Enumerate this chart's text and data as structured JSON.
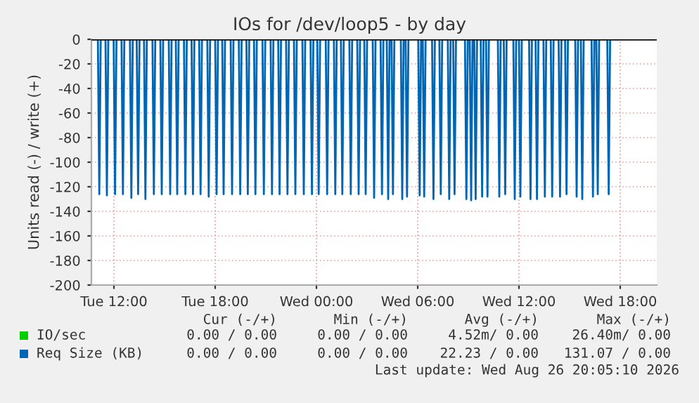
{
  "chart_data": {
    "type": "line",
    "title": "IOs for /dev/loop5 - by day",
    "ylabel": "Units read (-) / write (+)",
    "xlim": [
      "2026-08-25T10:40",
      "2026-08-26T20:10"
    ],
    "xticks": [
      {
        "value": "2026-08-25T12:00",
        "label": "Tue 12:00"
      },
      {
        "value": "2026-08-25T18:00",
        "label": "Tue 18:00"
      },
      {
        "value": "2026-08-26T00:00",
        "label": "Wed 00:00"
      },
      {
        "value": "2026-08-26T06:00",
        "label": "Wed 06:00"
      },
      {
        "value": "2026-08-26T12:00",
        "label": "Wed 12:00"
      },
      {
        "value": "2026-08-26T18:00",
        "label": "Wed 18:00"
      }
    ],
    "ylim": [
      -200,
      0
    ],
    "yticks": [
      0,
      -20,
      -40,
      -60,
      -80,
      -100,
      -120,
      -140,
      -160,
      -180,
      -200
    ],
    "grid": true,
    "legend": "bottom",
    "line_style": "solid",
    "marker": "none",
    "ref_lines": [
      {
        "axis": "y",
        "value": 0,
        "color": "#000000"
      }
    ],
    "series": [
      {
        "name": "IO/sec",
        "color": "#00cc00"
      },
      {
        "name": "Req Size (KB)",
        "color": "#0066b3",
        "x": [
          "2026-08-25T10:42",
          "2026-08-25T11:03",
          "2026-08-25T11:08",
          "2026-08-25T11:13",
          "2026-08-25T11:30",
          "2026-08-25T11:35",
          "2026-08-25T11:40",
          "2026-08-25T11:59",
          "2026-08-25T12:04",
          "2026-08-25T12:09",
          "2026-08-25T12:27",
          "2026-08-25T12:32",
          "2026-08-25T12:37",
          "2026-08-25T12:57",
          "2026-08-25T13:02",
          "2026-08-25T13:07",
          "2026-08-25T13:21",
          "2026-08-25T13:26",
          "2026-08-25T13:31",
          "2026-08-25T13:47",
          "2026-08-25T13:52",
          "2026-08-25T13:57",
          "2026-08-25T14:17",
          "2026-08-25T14:22",
          "2026-08-25T14:27",
          "2026-08-25T14:45",
          "2026-08-25T14:50",
          "2026-08-25T14:55",
          "2026-08-25T15:15",
          "2026-08-25T15:20",
          "2026-08-25T15:25",
          "2026-08-25T15:40",
          "2026-08-25T15:45",
          "2026-08-25T15:50",
          "2026-08-25T16:09",
          "2026-08-25T16:14",
          "2026-08-25T16:19",
          "2026-08-25T16:36",
          "2026-08-25T16:41",
          "2026-08-25T16:46",
          "2026-08-25T17:03",
          "2026-08-25T17:08",
          "2026-08-25T17:13",
          "2026-08-25T17:32",
          "2026-08-25T17:37",
          "2026-08-25T17:42",
          "2026-08-25T18:00",
          "2026-08-25T18:05",
          "2026-08-25T18:10",
          "2026-08-25T18:25",
          "2026-08-25T18:30",
          "2026-08-25T18:35",
          "2026-08-25T18:55",
          "2026-08-25T19:00",
          "2026-08-25T19:05",
          "2026-08-25T19:24",
          "2026-08-25T19:29",
          "2026-08-25T19:34",
          "2026-08-25T19:51",
          "2026-08-25T19:56",
          "2026-08-25T20:01",
          "2026-08-25T20:18",
          "2026-08-25T20:23",
          "2026-08-25T20:28",
          "2026-08-25T20:48",
          "2026-08-25T20:53",
          "2026-08-25T20:58",
          "2026-08-25T21:17",
          "2026-08-25T21:22",
          "2026-08-25T21:27",
          "2026-08-25T21:44",
          "2026-08-25T21:49",
          "2026-08-25T21:54",
          "2026-08-25T22:12",
          "2026-08-25T22:17",
          "2026-08-25T22:22",
          "2026-08-25T22:40",
          "2026-08-25T22:45",
          "2026-08-25T22:50",
          "2026-08-25T23:10",
          "2026-08-25T23:15",
          "2026-08-25T23:20",
          "2026-08-25T23:39",
          "2026-08-25T23:44",
          "2026-08-25T23:49",
          "2026-08-26T00:03",
          "2026-08-26T00:08",
          "2026-08-26T00:13",
          "2026-08-26T00:33",
          "2026-08-26T00:38",
          "2026-08-26T00:43",
          "2026-08-26T01:02",
          "2026-08-26T01:07",
          "2026-08-26T01:12",
          "2026-08-26T01:27",
          "2026-08-26T01:32",
          "2026-08-26T01:37",
          "2026-08-26T01:57",
          "2026-08-26T02:02",
          "2026-08-26T02:07",
          "2026-08-26T02:25",
          "2026-08-26T02:30",
          "2026-08-26T02:35",
          "2026-08-26T02:50",
          "2026-08-26T02:55",
          "2026-08-26T03:00",
          "2026-08-26T03:20",
          "2026-08-26T03:25",
          "2026-08-26T03:30",
          "2026-08-26T03:48",
          "2026-08-26T03:53",
          "2026-08-26T03:58",
          "2026-08-26T04:10",
          "2026-08-26T04:15",
          "2026-08-26T04:20",
          "2026-08-26T04:27",
          "2026-08-26T04:32",
          "2026-08-26T04:37",
          "2026-08-26T05:00",
          "2026-08-26T05:05",
          "2026-08-26T05:10",
          "2026-08-26T05:17",
          "2026-08-26T05:22",
          "2026-08-26T05:27",
          "2026-08-26T06:02",
          "2026-08-26T06:07",
          "2026-08-26T06:12",
          "2026-08-26T06:18",
          "2026-08-26T06:23",
          "2026-08-26T06:28",
          "2026-08-26T06:51",
          "2026-08-26T06:56",
          "2026-08-26T07:01",
          "2026-08-26T07:17",
          "2026-08-26T07:22",
          "2026-08-26T07:27",
          "2026-08-26T07:47",
          "2026-08-26T07:52",
          "2026-08-26T07:57",
          "2026-08-26T08:06",
          "2026-08-26T08:11",
          "2026-08-26T08:16",
          "2026-08-26T08:48",
          "2026-08-26T08:53",
          "2026-08-26T08:58",
          "2026-08-26T09:05",
          "2026-08-26T09:10",
          "2026-08-26T09:15",
          "2026-08-26T09:21",
          "2026-08-26T09:26",
          "2026-08-26T09:31",
          "2026-08-26T09:44",
          "2026-08-26T09:49",
          "2026-08-26T09:54",
          "2026-08-26T10:03",
          "2026-08-26T10:08",
          "2026-08-26T10:13",
          "2026-08-26T10:45",
          "2026-08-26T10:50",
          "2026-08-26T10:55",
          "2026-08-26T11:06",
          "2026-08-26T11:11",
          "2026-08-26T11:16",
          "2026-08-26T11:40",
          "2026-08-26T11:45",
          "2026-08-26T11:50",
          "2026-08-26T12:00",
          "2026-08-26T12:05",
          "2026-08-26T12:10",
          "2026-08-26T12:36",
          "2026-08-26T12:41",
          "2026-08-26T12:46",
          "2026-08-26T12:59",
          "2026-08-26T13:04",
          "2026-08-26T13:09",
          "2026-08-26T13:27",
          "2026-08-26T13:32",
          "2026-08-26T13:37",
          "2026-08-26T13:53",
          "2026-08-26T13:58",
          "2026-08-26T14:03",
          "2026-08-26T14:21",
          "2026-08-26T14:26",
          "2026-08-26T14:31",
          "2026-08-26T14:44",
          "2026-08-26T14:49",
          "2026-08-26T14:54",
          "2026-08-26T15:20",
          "2026-08-26T15:25",
          "2026-08-26T15:30",
          "2026-08-26T15:40",
          "2026-08-26T15:45",
          "2026-08-26T15:50",
          "2026-08-26T16:18",
          "2026-08-26T16:23",
          "2026-08-26T16:28",
          "2026-08-26T16:35",
          "2026-08-26T16:40",
          "2026-08-26T16:45",
          "2026-08-26T17:14",
          "2026-08-26T17:19",
          "2026-08-26T17:24",
          "2026-08-26T20:05"
        ],
        "values": [
          0,
          0,
          -126,
          0,
          0,
          -127,
          0,
          0,
          -126,
          0,
          0,
          -126,
          0,
          0,
          -129,
          0,
          0,
          -126,
          0,
          0,
          -130,
          0,
          0,
          -126,
          0,
          0,
          -126,
          0,
          0,
          -126,
          0,
          0,
          -126,
          0,
          0,
          -126,
          0,
          0,
          -126,
          0,
          0,
          -126,
          0,
          0,
          -128,
          0,
          0,
          -126,
          0,
          0,
          -126,
          0,
          0,
          -126,
          0,
          0,
          -126,
          0,
          0,
          -126,
          0,
          0,
          -126,
          0,
          0,
          -126,
          0,
          0,
          -126,
          0,
          0,
          -126,
          0,
          0,
          -126,
          0,
          0,
          -126,
          0,
          0,
          -126,
          0,
          0,
          -126,
          0,
          0,
          -126,
          0,
          0,
          -126,
          0,
          0,
          -126,
          0,
          0,
          -126,
          0,
          0,
          -126,
          0,
          0,
          -126,
          0,
          0,
          -126,
          0,
          0,
          -129,
          0,
          0,
          -126,
          0,
          0,
          -130,
          0,
          0,
          -126,
          0,
          0,
          -130,
          0,
          0,
          -128,
          0,
          0,
          -127,
          0,
          0,
          -128,
          0,
          0,
          -130,
          0,
          0,
          -126,
          0,
          0,
          -130,
          0,
          0,
          -126,
          0,
          0,
          -130,
          0,
          0,
          -131,
          0,
          0,
          -130,
          0,
          0,
          -128,
          0,
          0,
          -128,
          0,
          0,
          -128,
          0,
          0,
          -126,
          0,
          0,
          -130,
          0,
          0,
          -128,
          0,
          0,
          -130,
          0,
          0,
          -130,
          0,
          0,
          -128,
          0,
          0,
          -128,
          0,
          0,
          -128,
          0,
          0,
          -126,
          0,
          0,
          -128,
          0,
          0,
          -130,
          0,
          0,
          -128,
          0,
          0,
          -126,
          0,
          0,
          -126,
          0,
          0
        ]
      }
    ],
    "annotations": [
      "Cur (-/+)",
      "Min (-/+)",
      "Avg (-/+)",
      "Max (-/+)",
      "0.00 / 0.00",
      "0.00 / 0.00",
      "4.52m/ 0.00",
      "26.40m/ 0.00",
      "0.00 / 0.00",
      "0.00 / 0.00",
      "22.23 / 0.00",
      "131.07 / 0.00",
      "Last update: Wed Aug 26 20:05:10 2026"
    ]
  }
}
